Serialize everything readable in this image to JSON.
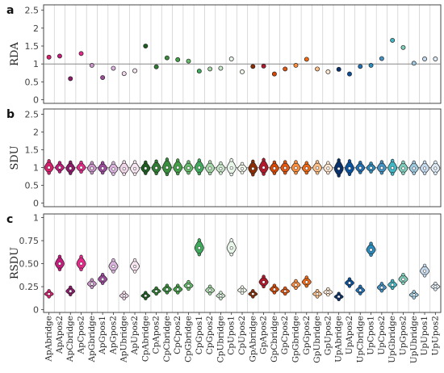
{
  "chart_data": {
    "type": "violin",
    "categories": [
      "ApAbridge",
      "ApApos2",
      "ApCbridge",
      "ApCpos2",
      "ApGbridge",
      "ApGpos1",
      "ApGpos2",
      "ApUbridge",
      "ApUpos2",
      "CpAbridge",
      "CpApos2",
      "CpCbridge",
      "CpCpos2",
      "CpGbridge",
      "CpGpos1",
      "CpGpos2",
      "CpUbridge",
      "CpUpos1",
      "CpUpos2",
      "GpAbridge",
      "GpApos2",
      "GpCbridge",
      "GpCpos2",
      "GpGbridge",
      "GpGpos2",
      "GpUbridge",
      "GpUpos2",
      "UpAbridge",
      "UpApos2",
      "UpCbridge",
      "UpCpos1",
      "UpCpos2",
      "UpGbridge",
      "UpGpos2",
      "UpUbridge",
      "UpUpos1",
      "UpUpos2"
    ],
    "colors": [
      "#d91e6e",
      "#c51b7d",
      "#8e1a6b",
      "#e7298a",
      "#c994c7",
      "#9e4b9e",
      "#dbb4dd",
      "#f2d7ea",
      "#f7e6f2",
      "#1b5e20",
      "#2e7d32",
      "#388e3c",
      "#43a047",
      "#66bb6a",
      "#41ab5d",
      "#a5d6a7",
      "#c8e6c9",
      "#e8f5e9",
      "#f1f8e9",
      "#8c2d04",
      "#b2182b",
      "#d94801",
      "#e6550d",
      "#fd8d3c",
      "#f16913",
      "#fdbe85",
      "#fee6ce",
      "#08306b",
      "#08519c",
      "#2171b5",
      "#2b8cbe",
      "#4292c6",
      "#41b6c4",
      "#7fcdbb",
      "#9ecae1",
      "#c6dbef",
      "#deebf7"
    ],
    "panels": [
      {
        "letter": "a",
        "ylabel": "RDA",
        "yticks": [
          0,
          0.5,
          1,
          1.5,
          2,
          2.5
        ],
        "ylim": [
          -0.1,
          2.65
        ],
        "refline": 1,
        "kind": "points",
        "values": [
          1.19,
          1.22,
          0.59,
          1.29,
          0.96,
          0.62,
          0.88,
          0.73,
          0.81,
          1.5,
          0.92,
          1.17,
          1.12,
          1.08,
          0.8,
          0.86,
          0.88,
          1.14,
          0.78,
          0.93,
          0.94,
          0.72,
          0.86,
          0.96,
          1.13,
          0.86,
          0.78,
          0.85,
          0.72,
          0.93,
          0.96,
          1.15,
          1.66,
          1.46,
          1.02,
          1.14,
          1.14
        ]
      },
      {
        "letter": "b",
        "ylabel": "SDU",
        "yticks": [
          0,
          0.5,
          1,
          1.5,
          2,
          2.5
        ],
        "ylim": [
          -0.1,
          2.65
        ],
        "refline": 1,
        "kind": "violin",
        "medians": [
          1.0,
          1.0,
          0.98,
          1.0,
          0.98,
          0.98,
          0.96,
          0.97,
          0.97,
          0.98,
          0.99,
          1.0,
          1.0,
          0.99,
          1.0,
          0.98,
          0.97,
          0.99,
          0.97,
          0.97,
          1.0,
          0.98,
          0.99,
          0.99,
          0.98,
          0.99,
          0.98,
          0.97,
          0.98,
          0.99,
          0.99,
          0.99,
          0.99,
          0.98,
          0.98,
          0.98,
          0.98
        ],
        "spread": [
          0.22,
          0.16,
          0.2,
          0.17,
          0.18,
          0.18,
          0.2,
          0.22,
          0.22,
          0.2,
          0.22,
          0.27,
          0.24,
          0.2,
          0.24,
          0.21,
          0.18,
          0.26,
          0.16,
          0.24,
          0.26,
          0.2,
          0.2,
          0.2,
          0.18,
          0.2,
          0.18,
          0.28,
          0.24,
          0.18,
          0.15,
          0.2,
          0.24,
          0.2,
          0.2,
          0.2,
          0.2
        ]
      },
      {
        "letter": "c",
        "ylabel": "RSDU",
        "yticks": [
          0,
          0.25,
          0.5,
          0.75,
          1
        ],
        "ytick_labels": [
          "0",
          "0.25",
          "0.50",
          "0.75",
          "1"
        ],
        "ylim": [
          -0.03,
          1.04
        ],
        "kind": "violin",
        "medians": [
          0.17,
          0.5,
          0.2,
          0.5,
          0.28,
          0.33,
          0.47,
          0.15,
          0.47,
          0.15,
          0.2,
          0.22,
          0.22,
          0.26,
          0.67,
          0.21,
          0.15,
          0.67,
          0.21,
          0.17,
          0.3,
          0.22,
          0.2,
          0.27,
          0.3,
          0.17,
          0.19,
          0.14,
          0.29,
          0.21,
          0.65,
          0.24,
          0.27,
          0.33,
          0.16,
          0.42,
          0.25
        ],
        "spread": [
          0.04,
          0.09,
          0.05,
          0.09,
          0.05,
          0.06,
          0.08,
          0.04,
          0.08,
          0.04,
          0.04,
          0.05,
          0.05,
          0.05,
          0.1,
          0.05,
          0.04,
          0.1,
          0.04,
          0.04,
          0.07,
          0.05,
          0.04,
          0.05,
          0.06,
          0.04,
          0.04,
          0.04,
          0.05,
          0.05,
          0.08,
          0.05,
          0.05,
          0.06,
          0.04,
          0.07,
          0.04
        ]
      }
    ]
  }
}
